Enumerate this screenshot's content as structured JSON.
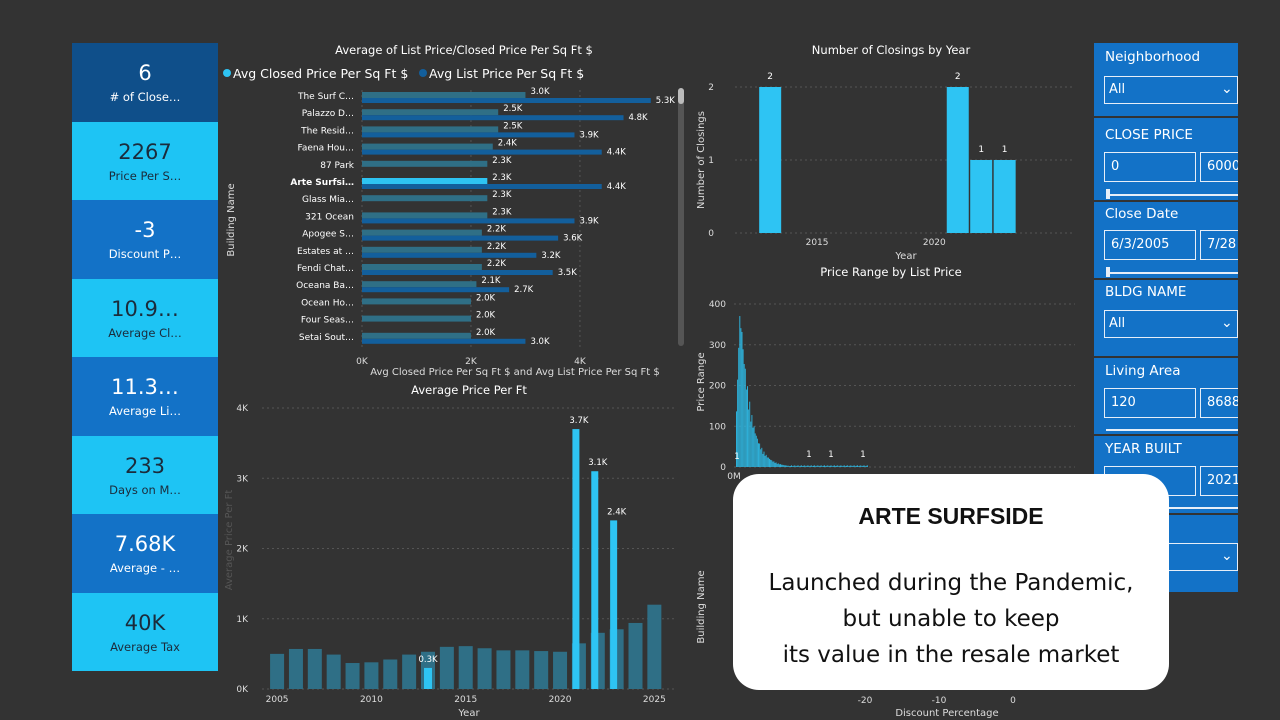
{
  "kpis": [
    {
      "value": "6",
      "label": "# of Close…",
      "style": "dark"
    },
    {
      "value": "2267",
      "label": "Price Per S…",
      "style": "light"
    },
    {
      "value": "-3",
      "label": "Discount P…",
      "style": "mid"
    },
    {
      "value": "10.9…",
      "label": "Average Cl…",
      "style": "light"
    },
    {
      "value": "11.3…",
      "label": "Average Li…",
      "style": "mid"
    },
    {
      "value": "233",
      "label": "Days on M…",
      "style": "light"
    },
    {
      "value": "7.68K",
      "label": "Average - …",
      "style": "mid"
    },
    {
      "value": "40K",
      "label": "Average Tax",
      "style": "light"
    }
  ],
  "colors": {
    "closed": "#2ec4f3",
    "list": "#135f9c",
    "muted": "#2f6f86",
    "background": "#333333"
  },
  "chart_data": [
    {
      "type": "bar",
      "title": "Average of List Price/Closed Price Per Sq Ft $",
      "legend": {
        "placement": "top-left",
        "items": [
          "Avg Closed Price Per Sq Ft $",
          "Avg List Price Per Sq Ft $"
        ]
      },
      "ylabel": "Building Name",
      "xlabel": "Avg Closed Price Per Sq Ft $ and Avg List Price Per Sq Ft $",
      "xticks": [
        "0K",
        "2K",
        "4K"
      ],
      "xlim": [
        0,
        5800
      ],
      "highlighted": "Arte Surfsi…",
      "categories": [
        "The Surf C…",
        "Palazzo D…",
        "The Resid…",
        "Faena Hou…",
        "87 Park",
        "Arte Surfsi…",
        "Glass Mia…",
        "321 Ocean",
        "Apogee S…",
        "Estates at …",
        "Fendi Chat…",
        "Oceana Ba…",
        "Ocean Ho…",
        "Four Seas…",
        "Setai Sout…"
      ],
      "series": [
        {
          "name": "Avg Closed Price Per Sq Ft $",
          "values": [
            3000,
            2500,
            2500,
            2400,
            2300,
            2300,
            2300,
            2300,
            2200,
            2200,
            2200,
            2100,
            2000,
            2000,
            2000
          ],
          "labels": [
            "3.0K",
            "2.5K",
            "2.5K",
            "2.4K",
            "2.3K",
            "2.3K",
            "2.3K",
            "2.3K",
            "2.2K",
            "2.2K",
            "2.2K",
            "2.1K",
            "2.0K",
            "2.0K",
            "2.0K"
          ]
        },
        {
          "name": "Avg List Price Per Sq Ft $",
          "values": [
            5300,
            4800,
            3900,
            4400,
            null,
            4400,
            null,
            3900,
            3600,
            3200,
            3500,
            2700,
            null,
            null,
            3000
          ],
          "labels": [
            "5.3K",
            "4.8K",
            "3.9K",
            "4.4K",
            "",
            "4.4K",
            "",
            "3.9K",
            "3.6K",
            "3.2K",
            "3.5K",
            "2.7K",
            "",
            "",
            "3.0K"
          ]
        }
      ]
    },
    {
      "type": "bar",
      "title": "Number of Closings by Year",
      "ylabel": "Number of Closings",
      "xlabel": "Year",
      "yticks": [
        "0",
        "1",
        "2"
      ],
      "xticks": [
        "2015",
        "2020"
      ],
      "xlim": [
        2011.5,
        2026
      ],
      "ylim": [
        0,
        2
      ],
      "x": [
        2013,
        2021,
        2022,
        2023
      ],
      "values": [
        2,
        2,
        1,
        1
      ],
      "labels": [
        "2",
        "2",
        "1",
        "1"
      ]
    },
    {
      "type": "bar",
      "title": "Price Range by List Price",
      "ylabel": "Price Range",
      "yticks": [
        "0",
        "100",
        "200",
        "300",
        "400"
      ],
      "xticks": [
        "0M"
      ],
      "ylim": [
        0,
        400
      ],
      "peak": 390,
      "labels": [
        "1",
        "1",
        "1",
        "1"
      ]
    },
    {
      "type": "bar",
      "title": "Average Price Per Ft",
      "ylabel": "Average Price Per Ft",
      "xlabel": "Year",
      "yticks": [
        "0K",
        "1K",
        "2K",
        "3K",
        "4K"
      ],
      "xticks": [
        "2005",
        "2010",
        "2015",
        "2020",
        "2025"
      ],
      "ylim": [
        0,
        4000
      ],
      "xlim": [
        2004.2,
        2026.2
      ],
      "bars": [
        {
          "x": 2005,
          "v": 500
        },
        {
          "x": 2006,
          "v": 570
        },
        {
          "x": 2007,
          "v": 570
        },
        {
          "x": 2008,
          "v": 490
        },
        {
          "x": 2009,
          "v": 370
        },
        {
          "x": 2010,
          "v": 380
        },
        {
          "x": 2011,
          "v": 420
        },
        {
          "x": 2012,
          "v": 490
        },
        {
          "x": 2013,
          "v": 530
        },
        {
          "x": 2014,
          "v": 600
        },
        {
          "x": 2015,
          "v": 610
        },
        {
          "x": 2016,
          "v": 580
        },
        {
          "x": 2017,
          "v": 550
        },
        {
          "x": 2018,
          "v": 550
        },
        {
          "x": 2019,
          "v": 540
        },
        {
          "x": 2020,
          "v": 530
        },
        {
          "x": 2021,
          "v": 650
        },
        {
          "x": 2022,
          "v": 800
        },
        {
          "x": 2023,
          "v": 850
        },
        {
          "x": 2024,
          "v": 940
        },
        {
          "x": 2025,
          "v": 1200
        }
      ],
      "highlights": [
        {
          "x": 2013,
          "v": 300,
          "label": "0.3K"
        },
        {
          "x": 2021,
          "v": 3700,
          "label": "3.7K"
        },
        {
          "x": 2022,
          "v": 3100,
          "label": "3.1K"
        },
        {
          "x": 2023,
          "v": 2400,
          "label": "2.4K"
        }
      ]
    },
    {
      "type": "scatter",
      "ylabel": "Building Name",
      "xlabel": "Discount Percentage",
      "xticks": [
        "-20",
        "-10",
        "0"
      ]
    }
  ],
  "slicers": {
    "neighborhood": {
      "label": "Neighborhood",
      "value": "All"
    },
    "close_price": {
      "label": "CLOSE PRICE",
      "min": "0",
      "max": "6000"
    },
    "close_date": {
      "label": "Close Date",
      "min": "6/3/2005",
      "max": "7/28"
    },
    "bldg_name": {
      "label": "BLDG NAME",
      "value": "All"
    },
    "living_area": {
      "label": "Living Area",
      "min": "120",
      "max": "8688"
    },
    "year_built": {
      "label": "YEAR BUILT",
      "min": "",
      "max": "2021"
    }
  },
  "callout": {
    "title": "ARTE SURFSIDE",
    "line1": "Launched during the Pandemic,",
    "line2": "but unable to keep",
    "line3": "its value in the resale market"
  }
}
